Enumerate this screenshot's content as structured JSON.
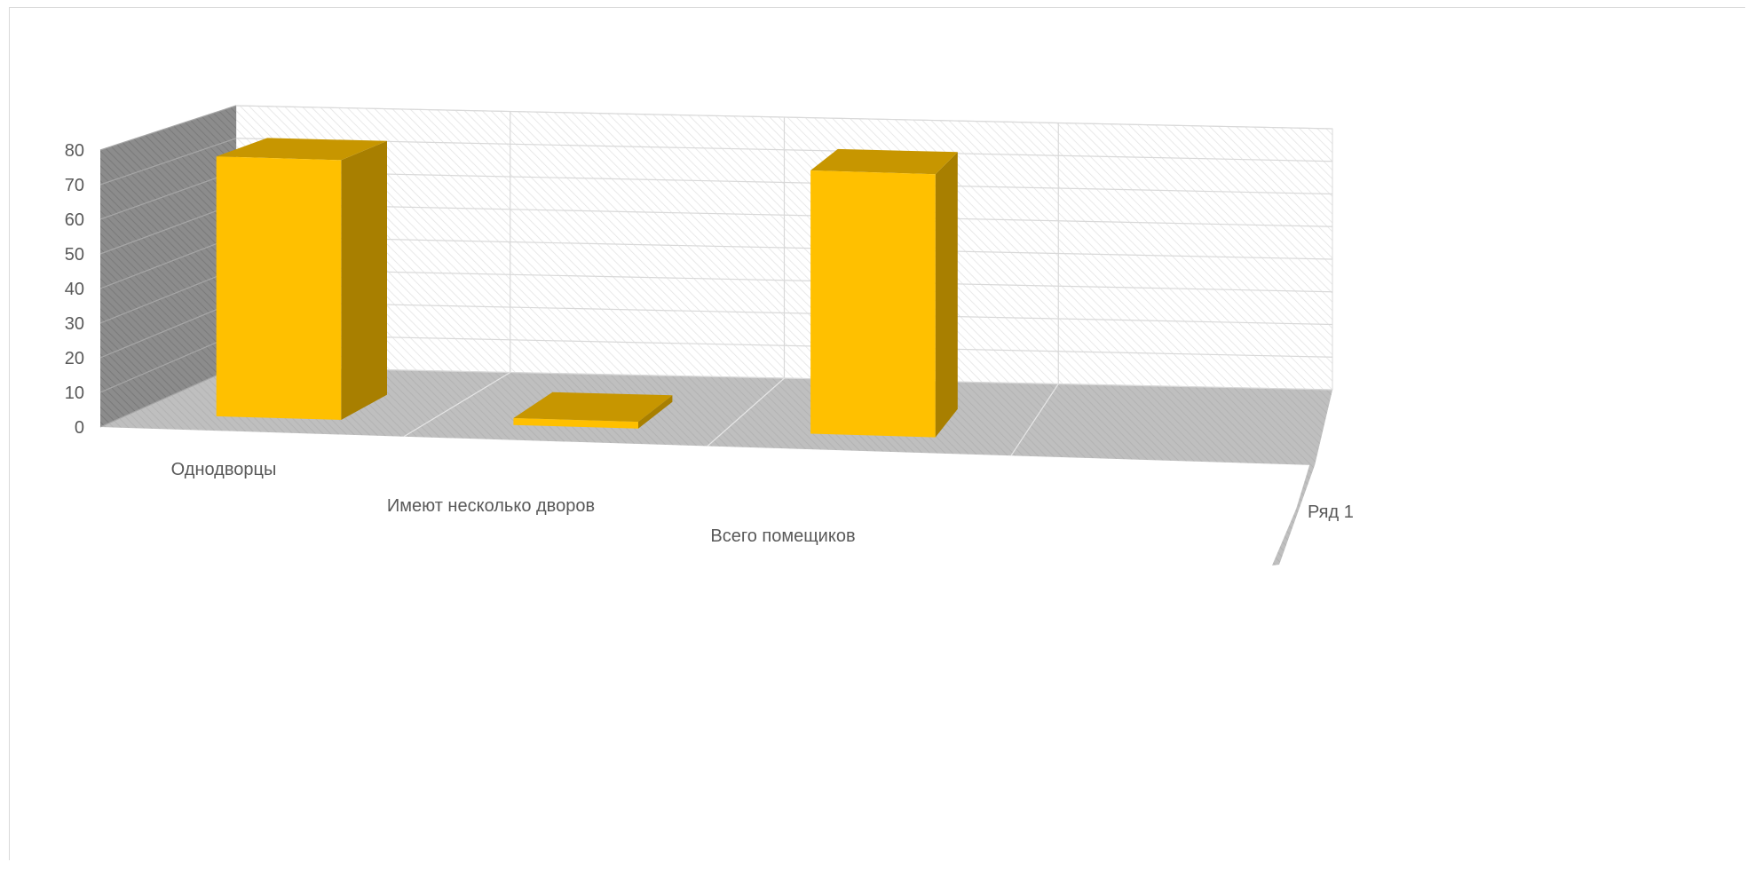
{
  "chart_data": {
    "type": "bar",
    "subtype": "3d-column",
    "categories": [
      "Однодворцы",
      "Имеют несколько дворов",
      "Всего помещиков"
    ],
    "series": [
      {
        "name": "Ряд 1",
        "values": [
          76,
          2,
          77
        ]
      }
    ],
    "ylim": [
      0,
      80
    ],
    "yticks": [
      "0",
      "10",
      "20",
      "30",
      "40",
      "50",
      "60",
      "70",
      "80"
    ],
    "grid": true,
    "colors": {
      "front": "#FFC000",
      "side": "#A87F00",
      "top": "#C79600",
      "floor": "#BFBFBF",
      "wall": "#8C8C8C"
    }
  }
}
